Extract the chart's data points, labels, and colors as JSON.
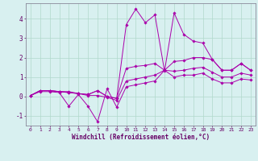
{
  "xlabel": "Windchill (Refroidissement éolien,°C)",
  "xlim": [
    -0.5,
    23.5
  ],
  "ylim": [
    -1.5,
    4.8
  ],
  "bg_color": "#d8f0f0",
  "grid_color": "#b0d8cc",
  "line_color": "#aa00aa",
  "xticks": [
    0,
    1,
    2,
    3,
    4,
    5,
    6,
    7,
    8,
    9,
    10,
    11,
    12,
    13,
    14,
    15,
    16,
    17,
    18,
    19,
    20,
    21,
    22,
    23
  ],
  "yticks": [
    -1,
    0,
    1,
    2,
    3,
    4
  ],
  "lines": [
    [
      0.05,
      0.3,
      0.3,
      0.25,
      0.25,
      0.15,
      0.1,
      0.3,
      0.0,
      -0.1,
      3.7,
      4.5,
      3.8,
      4.2,
      1.3,
      4.3,
      3.2,
      2.85,
      2.75,
      1.9,
      1.35,
      1.35,
      1.7,
      1.35
    ],
    [
      0.05,
      0.3,
      0.3,
      0.25,
      0.2,
      0.15,
      0.1,
      0.3,
      0.0,
      -0.1,
      1.45,
      1.55,
      1.6,
      1.7,
      1.35,
      1.8,
      1.85,
      2.0,
      2.0,
      1.9,
      1.35,
      1.35,
      1.7,
      1.35
    ],
    [
      0.05,
      0.3,
      0.3,
      0.25,
      0.2,
      0.15,
      0.05,
      0.05,
      -0.05,
      -0.2,
      0.8,
      0.9,
      1.0,
      1.1,
      1.35,
      1.3,
      1.35,
      1.45,
      1.5,
      1.25,
      1.0,
      1.0,
      1.2,
      1.1
    ],
    [
      0.05,
      0.25,
      0.25,
      0.2,
      -0.5,
      0.1,
      -0.5,
      -1.3,
      0.4,
      -0.55,
      0.5,
      0.6,
      0.7,
      0.8,
      1.35,
      1.0,
      1.1,
      1.1,
      1.2,
      0.9,
      0.7,
      0.7,
      0.9,
      0.85
    ]
  ]
}
